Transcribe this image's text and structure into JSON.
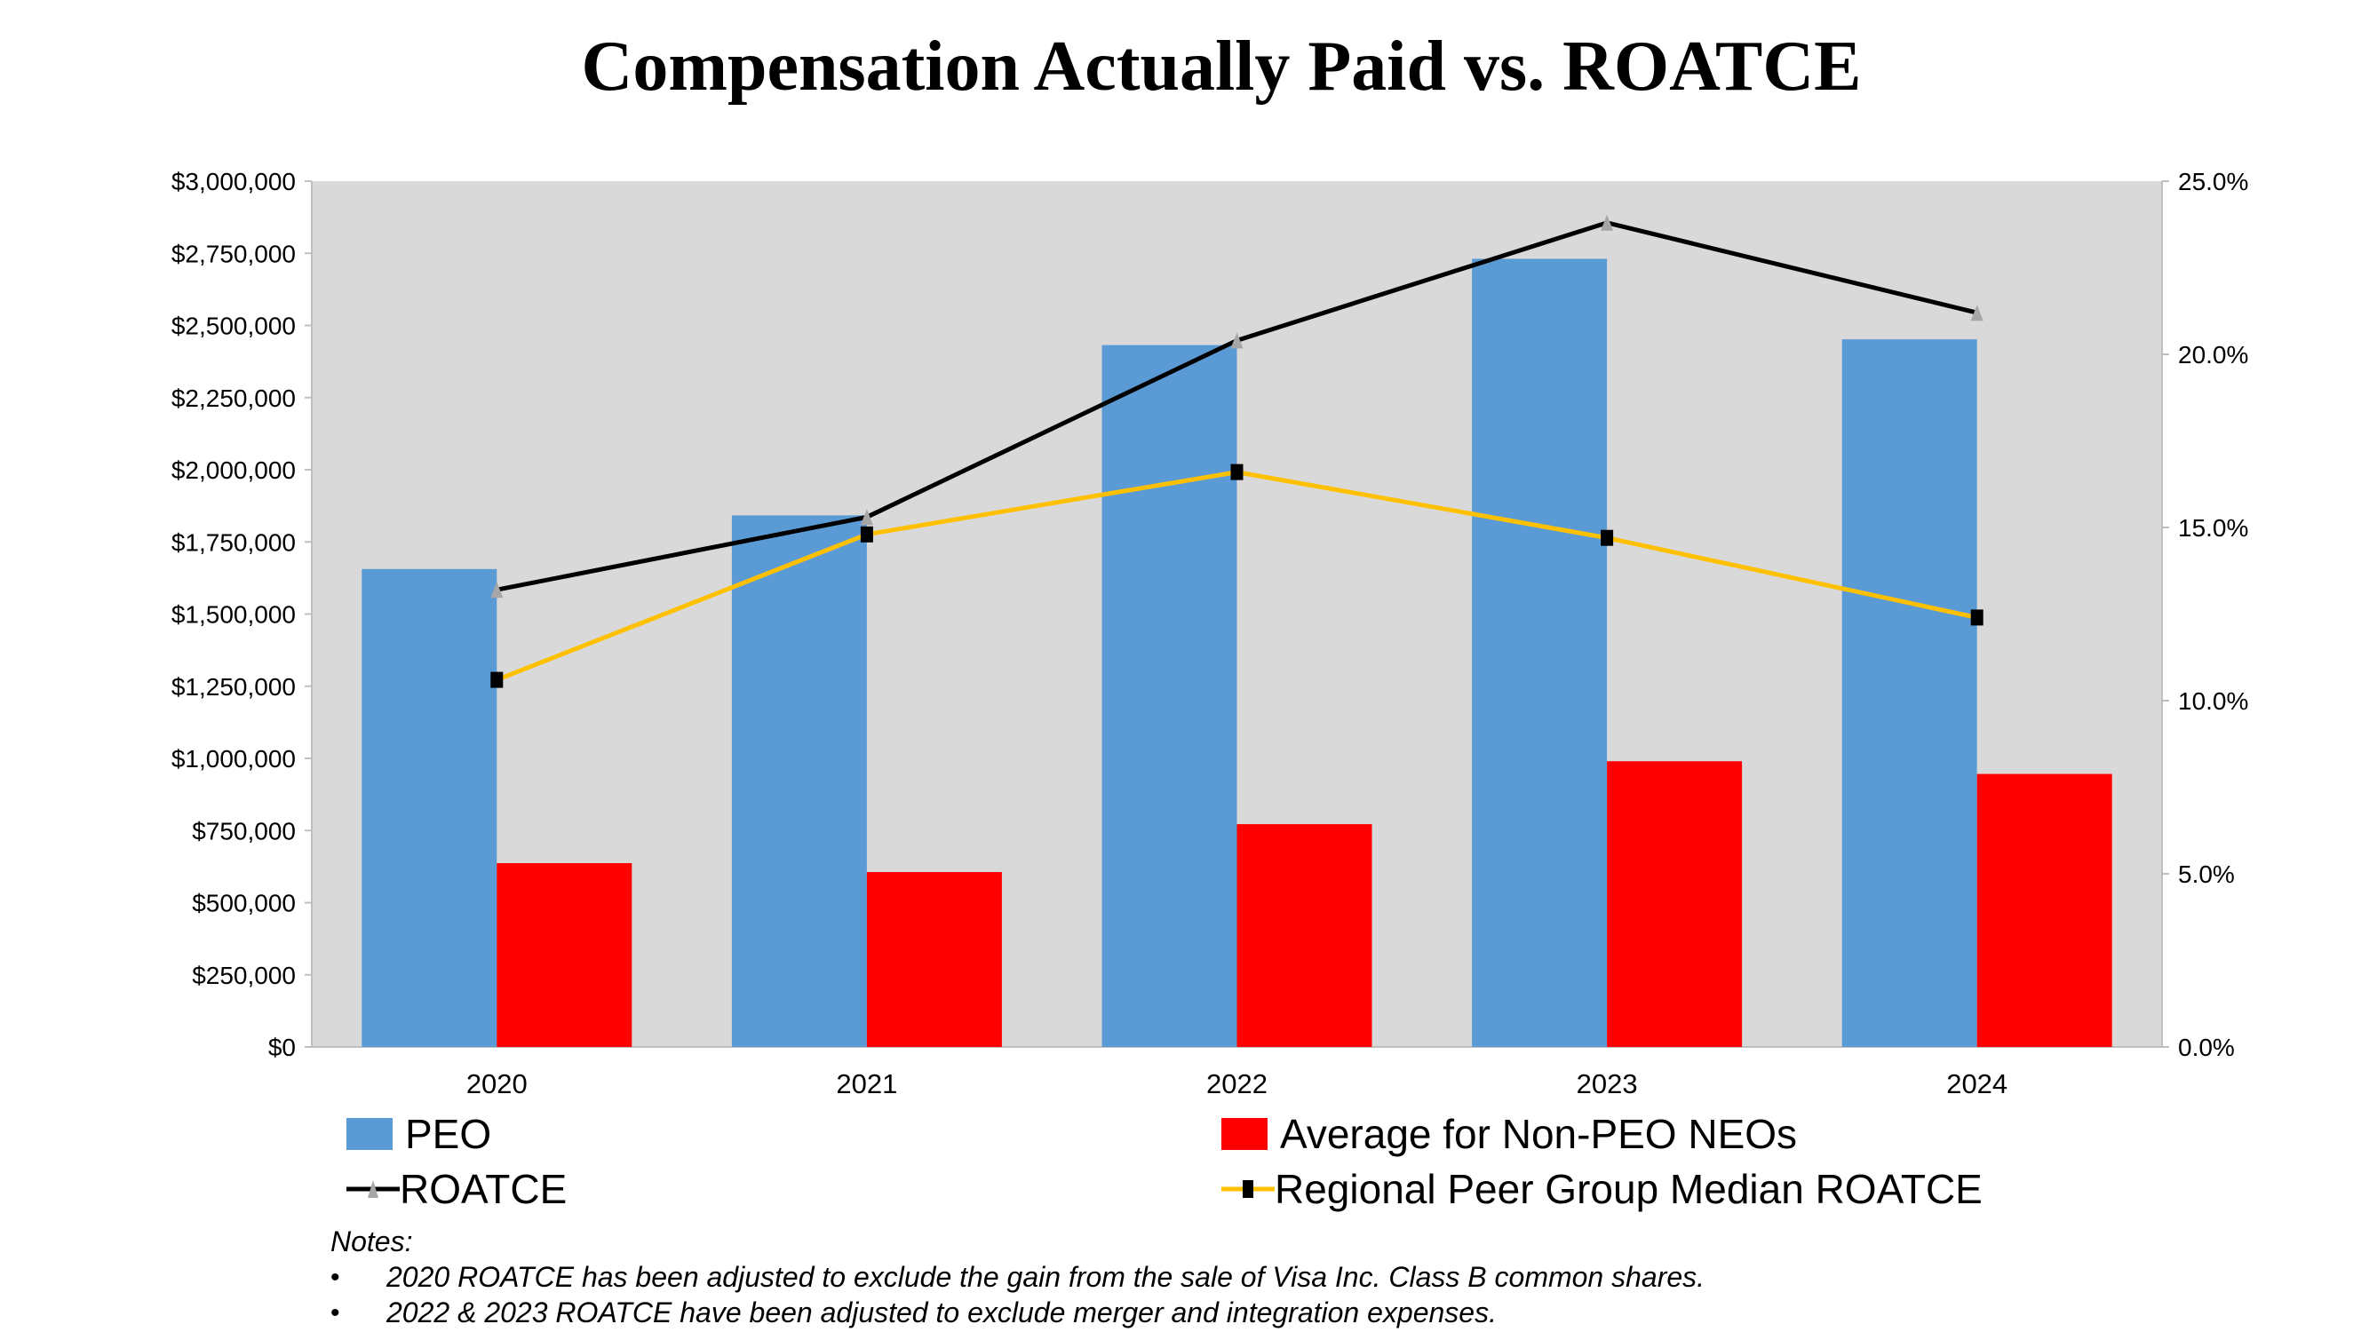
{
  "chart_data": {
    "type": "bar",
    "title": "Compensation Actually Paid vs. ROATCE",
    "categories": [
      "2020",
      "2021",
      "2022",
      "2023",
      "2024"
    ],
    "y_left": {
      "range": [
        0,
        3000000
      ],
      "ticks": [
        "$0",
        "$250,000",
        "$500,000",
        "$750,000",
        "$1,000,000",
        "$1,250,000",
        "$1,500,000",
        "$1,750,000",
        "$2,000,000",
        "$2,250,000",
        "$2,500,000",
        "$2,750,000",
        "$3,000,000"
      ]
    },
    "y_right": {
      "range": [
        0,
        25
      ],
      "ticks": [
        "0.0%",
        "5.0%",
        "10.0%",
        "15.0%",
        "20.0%",
        "25.0%"
      ]
    },
    "series": [
      {
        "name": "PEO",
        "kind": "bar",
        "axis": "left",
        "color": "#5b9bd5",
        "values": [
          1656000,
          1842000,
          2432000,
          2731000,
          2452000
        ]
      },
      {
        "name": "Average for Non-PEO NEOs",
        "kind": "bar",
        "axis": "left",
        "color": "#ff0000",
        "values": [
          637000,
          606000,
          772000,
          990000,
          946000
        ]
      },
      {
        "name": "ROATCE",
        "kind": "line",
        "axis": "right",
        "color": "#000000",
        "marker": "triangle",
        "marker_color": "#a6a6a6",
        "values": [
          13.2,
          15.3,
          20.4,
          23.8,
          21.2
        ]
      },
      {
        "name": "Regional Peer Group Median ROATCE",
        "kind": "line",
        "axis": "right",
        "color": "#ffc000",
        "marker": "square",
        "marker_color": "#000000",
        "values": [
          10.6,
          14.8,
          16.6,
          14.7,
          12.4
        ]
      }
    ],
    "plot_background": "#d9d9d9",
    "grid": false,
    "legend_placement": "bottom"
  },
  "notes": {
    "heading": "Notes:",
    "items": [
      "2020 ROATCE has been adjusted to exclude the gain from the sale of Visa Inc. Class B common shares.",
      "2022 & 2023 ROATCE have been adjusted to exclude merger and integration expenses."
    ],
    "bullet": "•"
  }
}
